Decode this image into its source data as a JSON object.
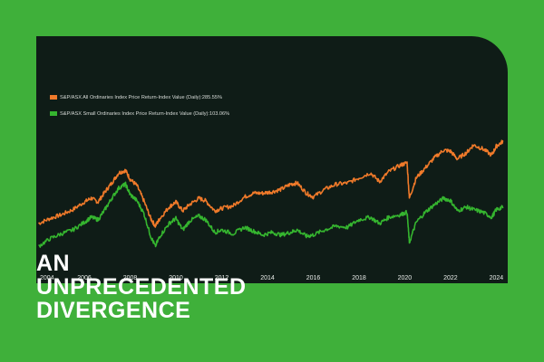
{
  "headline": {
    "line1": "AN",
    "line2": "UNPRECEDENTED",
    "line3": "DIVERGENCE"
  },
  "colors": {
    "background": "#3fb03a",
    "panel": "#0f1c17",
    "all_ords": "#f07a2a",
    "small_ords": "#35b52f",
    "text": "#ffffff"
  },
  "chart_data": {
    "type": "line",
    "x_ticks": [
      "2004",
      "2006",
      "2008",
      "2010",
      "2012",
      "2014",
      "2016",
      "2018",
      "2020",
      "2022",
      "2024"
    ],
    "xlim": [
      2003.9,
      2024.3
    ],
    "ylim": [
      0,
      100
    ],
    "grid": false,
    "legend_position": "top-left",
    "series": [
      {
        "name": "S&P/ASX All Ordinaries Index Price Return-Index Value (Daily):285.55%",
        "color": "#f07a2a",
        "points": [
          [
            2004.0,
            20
          ],
          [
            2004.5,
            24
          ],
          [
            2005.0,
            27
          ],
          [
            2005.5,
            31
          ],
          [
            2006.0,
            37
          ],
          [
            2006.3,
            40
          ],
          [
            2006.6,
            37
          ],
          [
            2006.9,
            45
          ],
          [
            2007.2,
            52
          ],
          [
            2007.5,
            60
          ],
          [
            2007.8,
            62
          ],
          [
            2008.0,
            55
          ],
          [
            2008.3,
            50
          ],
          [
            2008.6,
            38
          ],
          [
            2008.9,
            24
          ],
          [
            2009.1,
            18
          ],
          [
            2009.3,
            24
          ],
          [
            2009.7,
            33
          ],
          [
            2010.0,
            37
          ],
          [
            2010.3,
            30
          ],
          [
            2010.6,
            35
          ],
          [
            2011.0,
            40
          ],
          [
            2011.3,
            38
          ],
          [
            2011.7,
            30
          ],
          [
            2012.0,
            32
          ],
          [
            2012.5,
            34
          ],
          [
            2013.0,
            41
          ],
          [
            2013.4,
            44
          ],
          [
            2013.8,
            44
          ],
          [
            2014.2,
            45
          ],
          [
            2014.6,
            47
          ],
          [
            2015.0,
            51
          ],
          [
            2015.3,
            52
          ],
          [
            2015.7,
            44
          ],
          [
            2016.0,
            41
          ],
          [
            2016.5,
            47
          ],
          [
            2017.0,
            51
          ],
          [
            2017.5,
            52
          ],
          [
            2018.0,
            56
          ],
          [
            2018.5,
            60
          ],
          [
            2018.9,
            53
          ],
          [
            2019.3,
            61
          ],
          [
            2019.8,
            66
          ],
          [
            2020.1,
            68
          ],
          [
            2020.2,
            40
          ],
          [
            2020.5,
            56
          ],
          [
            2020.9,
            64
          ],
          [
            2021.3,
            72
          ],
          [
            2021.7,
            78
          ],
          [
            2022.0,
            77
          ],
          [
            2022.3,
            71
          ],
          [
            2022.7,
            76
          ],
          [
            2023.0,
            82
          ],
          [
            2023.4,
            79
          ],
          [
            2023.8,
            74
          ],
          [
            2024.0,
            81
          ],
          [
            2024.3,
            85
          ]
        ]
      },
      {
        "name": "S&P/ASX Small Ordinaries Index Price Return-Index Value (Daily):103.06%",
        "color": "#35b52f",
        "points": [
          [
            2004.0,
            2
          ],
          [
            2004.5,
            8
          ],
          [
            2005.0,
            12
          ],
          [
            2005.5,
            15
          ],
          [
            2006.0,
            21
          ],
          [
            2006.3,
            25
          ],
          [
            2006.6,
            23
          ],
          [
            2006.9,
            31
          ],
          [
            2007.2,
            40
          ],
          [
            2007.5,
            48
          ],
          [
            2007.8,
            51
          ],
          [
            2008.0,
            43
          ],
          [
            2008.3,
            38
          ],
          [
            2008.6,
            28
          ],
          [
            2008.9,
            10
          ],
          [
            2009.1,
            2
          ],
          [
            2009.3,
            10
          ],
          [
            2009.7,
            20
          ],
          [
            2010.0,
            24
          ],
          [
            2010.3,
            15
          ],
          [
            2010.6,
            22
          ],
          [
            2011.0,
            26
          ],
          [
            2011.3,
            23
          ],
          [
            2011.7,
            13
          ],
          [
            2012.0,
            15
          ],
          [
            2012.5,
            12
          ],
          [
            2013.0,
            17
          ],
          [
            2013.4,
            14
          ],
          [
            2013.8,
            11
          ],
          [
            2014.2,
            13
          ],
          [
            2014.6,
            11
          ],
          [
            2015.0,
            13
          ],
          [
            2015.3,
            15
          ],
          [
            2015.7,
            10
          ],
          [
            2016.0,
            11
          ],
          [
            2016.5,
            15
          ],
          [
            2017.0,
            18
          ],
          [
            2017.5,
            17
          ],
          [
            2018.0,
            23
          ],
          [
            2018.5,
            25
          ],
          [
            2018.9,
            20
          ],
          [
            2019.3,
            25
          ],
          [
            2019.8,
            27
          ],
          [
            2020.1,
            29
          ],
          [
            2020.2,
            5
          ],
          [
            2020.5,
            21
          ],
          [
            2020.9,
            29
          ],
          [
            2021.3,
            35
          ],
          [
            2021.7,
            40
          ],
          [
            2022.0,
            38
          ],
          [
            2022.3,
            30
          ],
          [
            2022.7,
            33
          ],
          [
            2023.0,
            31
          ],
          [
            2023.4,
            29
          ],
          [
            2023.8,
            25
          ],
          [
            2024.0,
            31
          ],
          [
            2024.3,
            33
          ]
        ]
      }
    ]
  }
}
